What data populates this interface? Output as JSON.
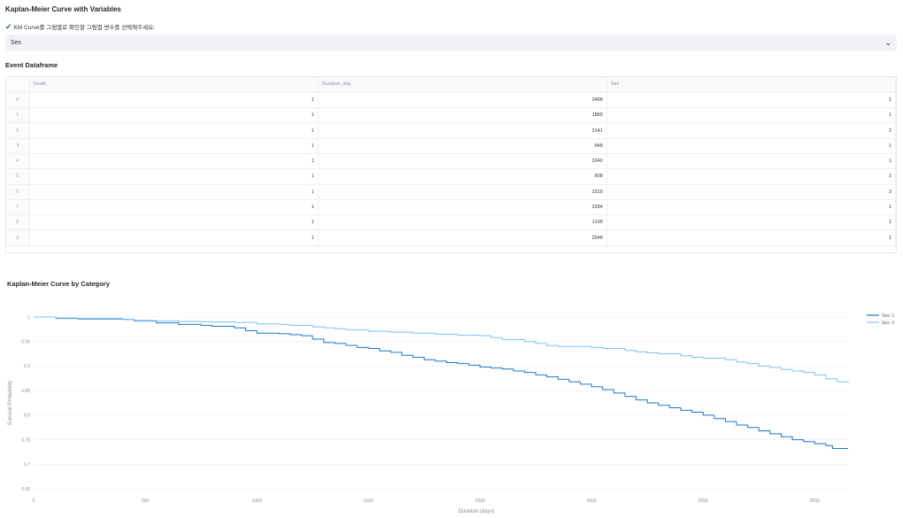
{
  "page": {
    "title": "Kaplan-Meier Curve with Variables",
    "select_label": "KM Curve를 그림별로 확인할 그림별 변수를 선택해주세요:",
    "select_value": "Sex",
    "dataframe_title": "Event Dataframe",
    "chart_title": "Kaplan-Meier Curve by Category"
  },
  "icons": {
    "check": "checkmark-icon",
    "chevron": "chevron-down-icon"
  },
  "colors": {
    "series1": "#1f77c4",
    "series2": "#7ec1ef",
    "check": "#2e7d32"
  },
  "table": {
    "columns": [
      "",
      "Death",
      "Duration_day",
      "Sex"
    ],
    "rows": [
      [
        "0",
        "1",
        "2498",
        "1"
      ],
      [
        "1",
        "1",
        "1889",
        "1"
      ],
      [
        "2",
        "1",
        "3141",
        "2"
      ],
      [
        "3",
        "1",
        "948",
        "1"
      ],
      [
        "4",
        "1",
        "3240",
        "1"
      ],
      [
        "5",
        "1",
        "608",
        "1"
      ],
      [
        "6",
        "1",
        "2310",
        "2"
      ],
      [
        "7",
        "1",
        "2294",
        "1"
      ],
      [
        "8",
        "1",
        "1199",
        "1"
      ],
      [
        "9",
        "1",
        "2548",
        "1"
      ]
    ]
  },
  "chart_data": {
    "type": "line",
    "title": "",
    "xlabel": "Duration (days)",
    "ylabel": "Survival Probability",
    "xlim": [
      0,
      3650
    ],
    "ylim": [
      0.65,
      1.0
    ],
    "xticks": [
      0,
      500,
      1000,
      1500,
      2000,
      2500,
      3000,
      3500
    ],
    "yticks": [
      0.65,
      0.7,
      0.75,
      0.8,
      0.85,
      0.9,
      0.95,
      1
    ],
    "ytick_labels": [
      "0.65",
      "0.7",
      "0.75",
      "0.8",
      "0.85",
      "0.9",
      "0.95",
      "1"
    ],
    "legend_position": "top-right",
    "grid": true,
    "series": [
      {
        "name": "Sex: 1",
        "x": [
          0,
          100,
          200,
          400,
          450,
          550,
          650,
          750,
          800,
          900,
          950,
          1000,
          1100,
          1150,
          1200,
          1250,
          1300,
          1350,
          1400,
          1450,
          1500,
          1550,
          1600,
          1650,
          1700,
          1750,
          1800,
          1850,
          1900,
          1950,
          2000,
          2050,
          2100,
          2150,
          2200,
          2250,
          2300,
          2350,
          2400,
          2450,
          2500,
          2550,
          2600,
          2650,
          2700,
          2750,
          2800,
          2850,
          2900,
          2950,
          3000,
          3050,
          3100,
          3150,
          3200,
          3250,
          3300,
          3350,
          3400,
          3450,
          3500,
          3550,
          3580,
          3650
        ],
        "y": [
          1.0,
          0.997,
          0.996,
          0.995,
          0.992,
          0.988,
          0.985,
          0.983,
          0.981,
          0.978,
          0.972,
          0.967,
          0.966,
          0.964,
          0.962,
          0.955,
          0.948,
          0.946,
          0.942,
          0.938,
          0.936,
          0.931,
          0.928,
          0.922,
          0.918,
          0.913,
          0.91,
          0.907,
          0.905,
          0.902,
          0.898,
          0.896,
          0.894,
          0.89,
          0.887,
          0.882,
          0.878,
          0.873,
          0.868,
          0.863,
          0.858,
          0.852,
          0.845,
          0.838,
          0.831,
          0.825,
          0.82,
          0.815,
          0.81,
          0.806,
          0.8,
          0.793,
          0.787,
          0.78,
          0.775,
          0.768,
          0.762,
          0.756,
          0.75,
          0.746,
          0.742,
          0.738,
          0.732,
          0.732
        ]
      },
      {
        "name": "Sex: 2",
        "x": [
          0,
          100,
          200,
          400,
          450,
          550,
          650,
          750,
          900,
          1000,
          1100,
          1150,
          1250,
          1300,
          1350,
          1400,
          1500,
          1600,
          1700,
          1800,
          1900,
          2000,
          2050,
          2100,
          2200,
          2250,
          2300,
          2350,
          2500,
          2550,
          2650,
          2700,
          2750,
          2800,
          2900,
          2950,
          3000,
          3100,
          3150,
          3200,
          3250,
          3300,
          3350,
          3400,
          3450,
          3500,
          3550,
          3600,
          3650
        ],
        "y": [
          1.0,
          0.998,
          0.997,
          0.995,
          0.993,
          0.992,
          0.991,
          0.99,
          0.989,
          0.986,
          0.985,
          0.983,
          0.98,
          0.978,
          0.976,
          0.974,
          0.971,
          0.969,
          0.967,
          0.965,
          0.963,
          0.962,
          0.958,
          0.954,
          0.95,
          0.946,
          0.942,
          0.94,
          0.938,
          0.936,
          0.932,
          0.929,
          0.927,
          0.925,
          0.921,
          0.918,
          0.916,
          0.913,
          0.908,
          0.905,
          0.9,
          0.897,
          0.893,
          0.89,
          0.887,
          0.882,
          0.874,
          0.868,
          0.866
        ]
      }
    ]
  }
}
